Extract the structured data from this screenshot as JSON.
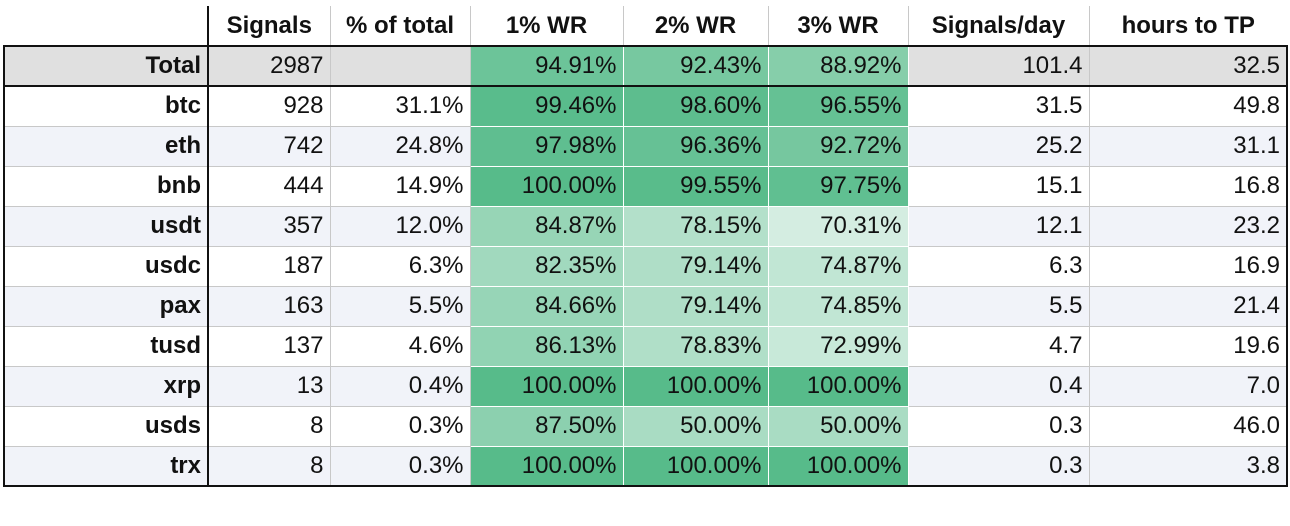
{
  "chart_data": {
    "type": "table",
    "columns": [
      "Signals",
      "% of total",
      "1% WR",
      "2% WR",
      "3% WR",
      "Signals/day",
      "hours to TP"
    ],
    "total": {
      "label": "Total",
      "cells": [
        "2987",
        "",
        "94.91%",
        "92.43%",
        "88.92%",
        "101.4",
        "32.5"
      ],
      "wr": [
        94.91,
        92.43,
        88.92
      ]
    },
    "rows": [
      {
        "label": "btc",
        "cells": [
          "928",
          "31.1%",
          "99.46%",
          "98.60%",
          "96.55%",
          "31.5",
          "49.8"
        ],
        "wr": [
          99.46,
          98.6,
          96.55
        ]
      },
      {
        "label": "eth",
        "cells": [
          "742",
          "24.8%",
          "97.98%",
          "96.36%",
          "92.72%",
          "25.2",
          "31.1"
        ],
        "wr": [
          97.98,
          96.36,
          92.72
        ]
      },
      {
        "label": "bnb",
        "cells": [
          "444",
          "14.9%",
          "100.00%",
          "99.55%",
          "97.75%",
          "15.1",
          "16.8"
        ],
        "wr": [
          100.0,
          99.55,
          97.75
        ]
      },
      {
        "label": "usdt",
        "cells": [
          "357",
          "12.0%",
          "84.87%",
          "78.15%",
          "70.31%",
          "12.1",
          "23.2"
        ],
        "wr": [
          84.87,
          78.15,
          70.31
        ]
      },
      {
        "label": "usdc",
        "cells": [
          "187",
          "6.3%",
          "82.35%",
          "79.14%",
          "74.87%",
          "6.3",
          "16.9"
        ],
        "wr": [
          82.35,
          79.14,
          74.87
        ]
      },
      {
        "label": "pax",
        "cells": [
          "163",
          "5.5%",
          "84.66%",
          "79.14%",
          "74.85%",
          "5.5",
          "21.4"
        ],
        "wr": [
          84.66,
          79.14,
          74.85
        ]
      },
      {
        "label": "tusd",
        "cells": [
          "137",
          "4.6%",
          "86.13%",
          "78.83%",
          "72.99%",
          "4.7",
          "19.6"
        ],
        "wr": [
          86.13,
          78.83,
          72.99
        ]
      },
      {
        "label": "xrp",
        "cells": [
          "13",
          "0.4%",
          "100.00%",
          "100.00%",
          "100.00%",
          "0.4",
          "7.0"
        ],
        "wr": [
          100.0,
          100.0,
          100.0
        ]
      },
      {
        "label": "usds",
        "cells": [
          "8",
          "0.3%",
          "87.50%",
          "50.00%",
          "50.00%",
          "0.3",
          "46.0"
        ],
        "wr": [
          87.5,
          50.0,
          50.0
        ]
      },
      {
        "label": "trx",
        "cells": [
          "8",
          "0.3%",
          "100.00%",
          "100.00%",
          "100.00%",
          "0.3",
          "3.8"
        ],
        "wr": [
          100.0,
          100.0,
          100.0
        ]
      }
    ],
    "heat_colors": {
      "high": "#57bb8a",
      "low": "#ffffff"
    }
  }
}
